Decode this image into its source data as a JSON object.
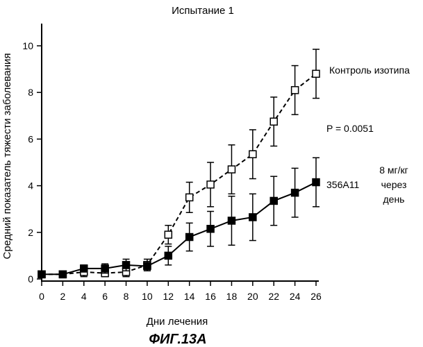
{
  "chart_data": {
    "type": "line",
    "title": "Испытание 1",
    "xlabel": "Дни лечения",
    "ylabel": "Средний показатель тяжести заболевания",
    "figure_label": "ФИГ.13А",
    "xlim": [
      0,
      26
    ],
    "ylim": [
      0,
      10
    ],
    "xticks": [
      "0",
      "2",
      "4",
      "6",
      "8",
      "10",
      "12",
      "14",
      "16",
      "18",
      "20",
      "22",
      "24",
      "26"
    ],
    "yticks": [
      "0",
      "2",
      "4",
      "6",
      "8",
      "10"
    ],
    "x": [
      0,
      2,
      4,
      6,
      8,
      10,
      12,
      14,
      16,
      18,
      20,
      22,
      24,
      26
    ],
    "series": [
      {
        "name": "Контроль изотипа",
        "line_style": "dashed",
        "marker": "open-square",
        "values": [
          0.2,
          0.2,
          0.3,
          0.25,
          0.3,
          0.6,
          1.9,
          3.5,
          4.05,
          4.7,
          5.35,
          6.75,
          8.1,
          8.8
        ],
        "error": [
          0.15,
          0.15,
          0.2,
          0.15,
          0.2,
          0.25,
          0.4,
          0.65,
          0.95,
          1.05,
          1.05,
          1.05,
          1.05,
          1.05
        ]
      },
      {
        "name": "356A11",
        "line_style": "solid",
        "marker": "filled-square",
        "values": [
          0.2,
          0.2,
          0.45,
          0.45,
          0.6,
          0.55,
          1.0,
          1.8,
          2.15,
          2.5,
          2.65,
          3.35,
          3.7,
          4.15
        ],
        "error": [
          0.15,
          0.15,
          0.15,
          0.2,
          0.25,
          0.2,
          0.4,
          0.6,
          0.75,
          1.05,
          1.0,
          1.05,
          1.05,
          1.05
        ]
      }
    ],
    "annotations": {
      "p_value": "P = 0.0051",
      "dose_line1": "8 мг/кг",
      "dose_line2": "через",
      "dose_line3": "день"
    }
  }
}
